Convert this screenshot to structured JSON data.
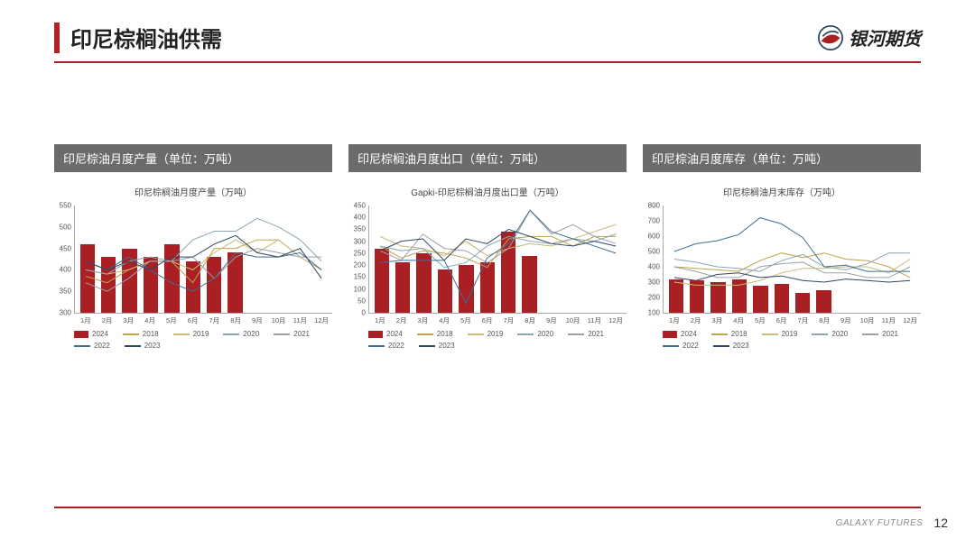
{
  "header": {
    "title": "印尼棕榈油供需",
    "logo_text": "银河期货"
  },
  "footer": {
    "label": "GALAXY FUTURES",
    "page": "12"
  },
  "colors": {
    "accent": "#aa1f24",
    "panel_header_bg": "#6b6b6b",
    "panel_header_fg": "#ffffff",
    "bar_2024": "#aa1f24",
    "line_2018": "#bfa24a",
    "line_2019": "#c9b97a",
    "line_2020": "#8aa7b0",
    "line_2021": "#9aa0a6",
    "line_2022": "#3f6f8f",
    "line_2023": "#2f4763"
  },
  "months": [
    "1月",
    "2月",
    "3月",
    "4月",
    "5月",
    "6月",
    "7月",
    "8月",
    "9月",
    "10月",
    "11月",
    "12月"
  ],
  "legend_series": [
    {
      "key": "2024",
      "label": "2024",
      "type": "bar",
      "color": "#aa1f24"
    },
    {
      "key": "2018",
      "label": "2018",
      "type": "line",
      "color": "#bfa24a"
    },
    {
      "key": "2019",
      "label": "2019",
      "type": "line",
      "color": "#c9b97a"
    },
    {
      "key": "2020",
      "label": "2020",
      "type": "line",
      "color": "#8aa7b0"
    },
    {
      "key": "2021",
      "label": "2021",
      "type": "line",
      "color": "#9aa0a6"
    },
    {
      "key": "2022",
      "label": "2022",
      "type": "line",
      "color": "#3f6f8f"
    },
    {
      "key": "2023",
      "label": "2023",
      "type": "line",
      "color": "#2f4763"
    }
  ],
  "charts": [
    {
      "header": "印尼棕油月度产量（单位：万吨）",
      "subtitle": "印尼棕榈油月度产量（万吨）",
      "ylim": [
        300,
        550
      ],
      "ytick_step": 50,
      "bars_2024": [
        460,
        430,
        450,
        430,
        460,
        420,
        430,
        440,
        null,
        null,
        null,
        null
      ],
      "lines": {
        "2018": [
          385,
          370,
          400,
          420,
          420,
          370,
          450,
          450,
          470,
          470,
          430,
          400
        ],
        "2019": [
          400,
          390,
          400,
          420,
          420,
          400,
          440,
          470,
          440,
          470,
          430,
          400
        ],
        "2020": [
          400,
          390,
          420,
          430,
          420,
          470,
          490,
          490,
          520,
          500,
          470,
          420
        ],
        "2021": [
          370,
          350,
          380,
          420,
          420,
          430,
          380,
          430,
          450,
          440,
          430,
          430
        ],
        "2022": [
          420,
          400,
          430,
          400,
          370,
          350,
          380,
          440,
          430,
          430,
          440,
          400
        ],
        "2023": [
          420,
          400,
          420,
          400,
          430,
          430,
          460,
          480,
          440,
          430,
          450,
          380
        ]
      }
    },
    {
      "header": "印尼棕榈油月度出口（单位：万吨）",
      "subtitle": "Gapki-印尼棕榈油月度出口量（万吨）",
      "ylim": [
        0,
        450
      ],
      "ytick_step": 50,
      "bars_2024": [
        270,
        210,
        250,
        180,
        200,
        210,
        340,
        240,
        null,
        null,
        null,
        null
      ],
      "lines": {
        "2018": [
          280,
          230,
          260,
          250,
          230,
          190,
          310,
          320,
          320,
          280,
          320,
          320
        ],
        "2019": [
          320,
          280,
          270,
          240,
          300,
          240,
          270,
          290,
          280,
          310,
          340,
          370
        ],
        "2020": [
          280,
          260,
          270,
          190,
          210,
          280,
          320,
          300,
          290,
          310,
          300,
          330
        ],
        "2021": [
          260,
          220,
          330,
          270,
          260,
          210,
          270,
          430,
          330,
          370,
          320,
          290
        ],
        "2022": [
          210,
          220,
          220,
          220,
          40,
          230,
          290,
          430,
          340,
          310,
          280,
          250
        ],
        "2023": [
          260,
          300,
          310,
          220,
          310,
          290,
          350,
          320,
          290,
          280,
          300,
          280
        ]
      }
    },
    {
      "header": "印尼棕油月度库存（单位：万吨）",
      "subtitle": "印尼棕榈油月末库存（万吨）",
      "ylim": [
        100,
        800
      ],
      "ytick_step": 100,
      "bars_2024": [
        320,
        310,
        300,
        320,
        275,
        290,
        230,
        250,
        null,
        null,
        null,
        null
      ],
      "lines": {
        "2018": [
          400,
          390,
          380,
          370,
          440,
          490,
          460,
          490,
          450,
          440,
          400,
          330
        ],
        "2019": [
          300,
          280,
          280,
          280,
          310,
          360,
          390,
          390,
          400,
          400,
          360,
          450
        ],
        "2020": [
          450,
          430,
          400,
          390,
          370,
          440,
          480,
          400,
          380,
          420,
          490,
          490
        ],
        "2021": [
          400,
          370,
          330,
          330,
          400,
          420,
          430,
          360,
          360,
          330,
          330,
          400
        ],
        "2022": [
          500,
          550,
          570,
          610,
          720,
          680,
          590,
          400,
          410,
          370,
          370,
          370
        ],
        "2023": [
          330,
          310,
          350,
          360,
          330,
          340,
          310,
          300,
          320,
          310,
          300,
          310
        ]
      }
    }
  ]
}
